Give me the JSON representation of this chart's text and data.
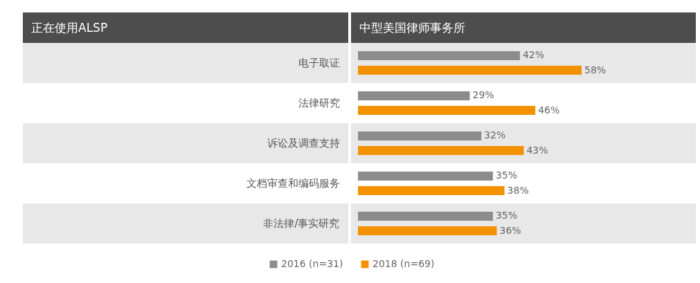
{
  "chart_data": {
    "type": "bar",
    "orientation": "horizontal",
    "title": "中型美国律师事务所",
    "annotations": [
      "正在使用ALSP"
    ],
    "legend": "bottom",
    "categories": [
      "电子取证",
      "法律研究",
      "诉讼及调查支持",
      "文档审查和编码服务",
      "非法律/事实研究"
    ],
    "series": [
      {
        "name": "2016 (n=31)",
        "color": "#8c8c8c",
        "values": [
          42,
          29,
          32,
          35,
          35
        ],
        "value_labels": [
          "42%",
          "29%",
          "32%",
          "35%",
          "35%"
        ]
      },
      {
        "name": "2018 (n=69)",
        "color": "#f39200",
        "values": [
          58,
          46,
          43,
          38,
          36
        ],
        "value_labels": [
          "58%",
          "46%",
          "43%",
          "38%",
          "36%"
        ]
      }
    ]
  }
}
